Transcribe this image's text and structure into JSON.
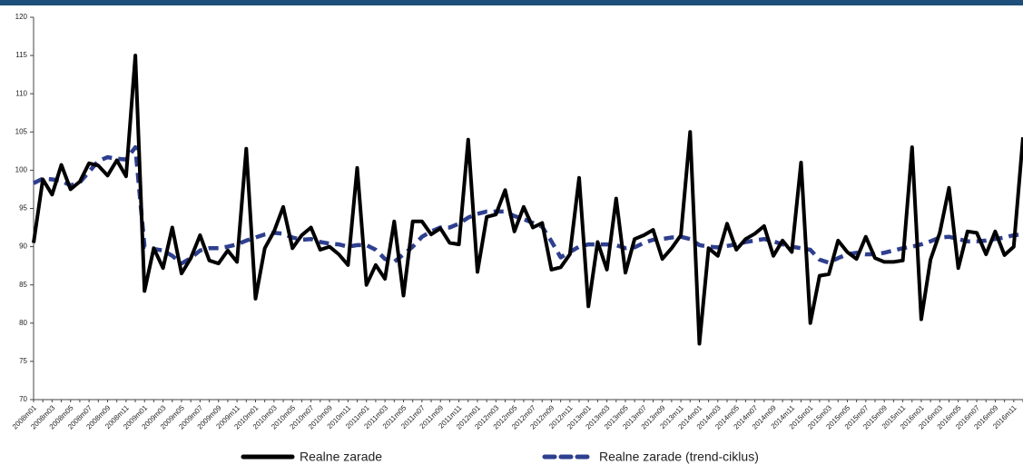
{
  "chart_data": {
    "type": "line",
    "categories": [
      "2008m01",
      null,
      "2008m03",
      null,
      "2008m05",
      null,
      "2008m07",
      null,
      "2008m09",
      null,
      "2008m11",
      null,
      "2009m01",
      null,
      "2009m03",
      null,
      "2009m05",
      null,
      "2009m07",
      null,
      "2009m09",
      null,
      "2009m11",
      null,
      "2010m01",
      null,
      "2010m03",
      null,
      "2010m05",
      null,
      "2010m07",
      null,
      "2010m09",
      null,
      "2010m11",
      null,
      "2011m01",
      null,
      "2011m03",
      null,
      "2011m05",
      null,
      "2011m07",
      null,
      "2011m09",
      null,
      "2011m11",
      null,
      "2012m01",
      null,
      "2012m03",
      null,
      "2012m05",
      null,
      "2012m07",
      null,
      "2012m09",
      null,
      "2012m11",
      null,
      "2013m01",
      null,
      "2013m03",
      null,
      "2013m05",
      null,
      "2013m07",
      null,
      "2013m09",
      null,
      "2013m11",
      null,
      "2014m01",
      null,
      "2014m03",
      null,
      "2014m05",
      null,
      "2014m07",
      null,
      "2014m09",
      null,
      "2014m11",
      null,
      "2015m01",
      null,
      "2015m03",
      null,
      "2015m05",
      null,
      "2015m07",
      null,
      "2015m09",
      null,
      "2015m11",
      null,
      "2016m01",
      null,
      "2016m03",
      null,
      "2016m05",
      null,
      "2016m07",
      null,
      "2016m09",
      null,
      "2016m11",
      null
    ],
    "series": [
      {
        "name": "Realne zarade",
        "color": "#000000",
        "dashed": false,
        "values": [
          90.5,
          98.8,
          96.8,
          100.7,
          97.5,
          98.5,
          100.9,
          100.6,
          99.3,
          101.3,
          99.2,
          115,
          84.2,
          89.8,
          87.2,
          92.5,
          86.5,
          88.5,
          91.5,
          88.2,
          87.8,
          89.5,
          88.0,
          102.8,
          83.2,
          89.8,
          92.0,
          95.2,
          89.8,
          91.5,
          92.5,
          89.6,
          90.0,
          89.0,
          87.6,
          100.3,
          85.0,
          87.6,
          85.8,
          93.3,
          83.6,
          93.3,
          93.3,
          91.6,
          92.4,
          90.5,
          90.3,
          104.0,
          86.7,
          93.9,
          94.2,
          97.4,
          92.0,
          95.2,
          92.5,
          93.1,
          87.0,
          87.3,
          89.0,
          99.0,
          82.2,
          90.6,
          87.0,
          96.3,
          86.6,
          91.0,
          91.5,
          92.2,
          88.4,
          89.8,
          91.5,
          105.0,
          77.3,
          89.8,
          88.8,
          93.0,
          89.6,
          91.0,
          91.7,
          92.7,
          88.8,
          90.8,
          89.3,
          101.0,
          80.0,
          86.2,
          86.4,
          90.8,
          89.3,
          88.4,
          91.3,
          88.5,
          88.0,
          88.0,
          88.2,
          103.0,
          80.5,
          88.3,
          91.8,
          97.7,
          87.2,
          92.0,
          91.8,
          89.0,
          92.0,
          88.9,
          90.0,
          104.3
        ]
      },
      {
        "name": "Realne zarade (trend-ciklus)",
        "color": "#2e3f8f",
        "dashed": true,
        "values": [
          98.3,
          98.9,
          98.8,
          98.6,
          98.0,
          98.4,
          99.8,
          101.2,
          101.7,
          101.5,
          101.4,
          103.0,
          90.0,
          89.7,
          89.5,
          88.8,
          87.8,
          88.5,
          89.5,
          89.8,
          89.8,
          90.0,
          90.3,
          90.8,
          91.2,
          91.6,
          91.8,
          91.7,
          91.2,
          90.9,
          91.0,
          90.6,
          90.4,
          90.3,
          90.0,
          90.2,
          90.2,
          89.6,
          88.4,
          88.0,
          89.0,
          90.0,
          91.3,
          92.0,
          92.5,
          92.5,
          93.0,
          93.8,
          94.3,
          94.6,
          94.6,
          94.6,
          94.0,
          93.6,
          93.1,
          92.6,
          90.7,
          88.6,
          89.3,
          90.0,
          90.3,
          90.3,
          90.3,
          90.2,
          89.8,
          89.9,
          90.5,
          90.9,
          91.0,
          91.2,
          91.3,
          91.0,
          90.2,
          90.0,
          89.9,
          90.1,
          90.3,
          90.6,
          90.8,
          91.0,
          90.7,
          90.3,
          90.0,
          89.8,
          89.6,
          88.3,
          87.9,
          88.5,
          89.0,
          89.2,
          89.0,
          89.0,
          89.2,
          89.5,
          89.8,
          90.0,
          90.3,
          90.7,
          91.2,
          91.3,
          91.0,
          90.7,
          90.7,
          90.8,
          91.0,
          91.2,
          91.5,
          91.6
        ]
      }
    ],
    "ylim": [
      70,
      120
    ],
    "yticks": [
      70,
      75,
      80,
      85,
      90,
      95,
      100,
      105,
      110,
      115,
      120
    ],
    "grid": false
  }
}
